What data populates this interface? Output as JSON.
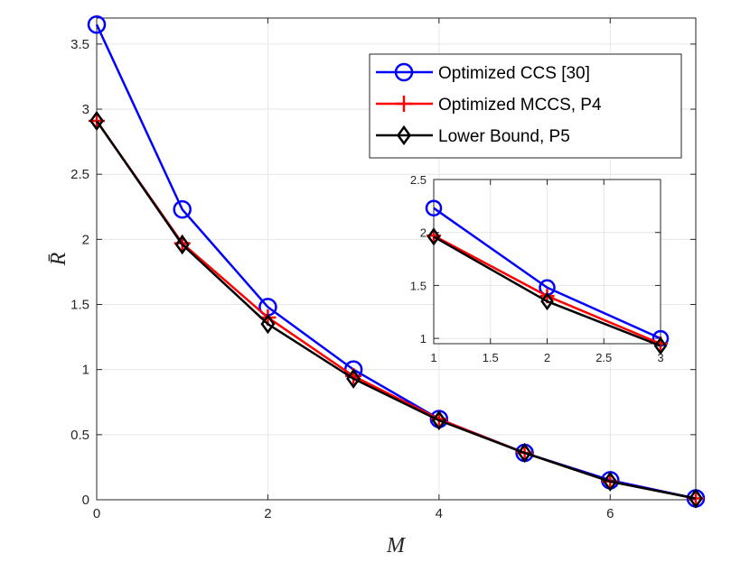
{
  "chart_data": {
    "type": "line",
    "title": "",
    "xlabel": "M",
    "ylabel": "R̄",
    "xlim": [
      0,
      7
    ],
    "ylim": [
      0,
      3.7
    ],
    "xticks": [
      0,
      2,
      4,
      6
    ],
    "yticks": [
      0,
      0.5,
      1,
      1.5,
      2,
      2.5,
      3,
      3.5
    ],
    "x": [
      0,
      1,
      2,
      3,
      4,
      5,
      6,
      7
    ],
    "grid": true,
    "legend_position": "top-right",
    "series": [
      {
        "name": "Optimized CCS [30]",
        "color": "#0000ff",
        "marker": "circle",
        "values": [
          3.65,
          2.23,
          1.48,
          1.0,
          0.62,
          0.36,
          0.15,
          0.01
        ]
      },
      {
        "name": "Optimized MCCS, P4",
        "color": "#ff0000",
        "marker": "plus",
        "values": [
          2.91,
          1.97,
          1.4,
          0.95,
          0.62,
          0.36,
          0.14,
          0.01
        ]
      },
      {
        "name": "Lower Bound, P5",
        "color": "#000000",
        "marker": "diamond",
        "values": [
          2.91,
          1.96,
          1.35,
          0.93,
          0.61,
          0.36,
          0.14,
          0.01
        ]
      }
    ],
    "inset": {
      "xlim": [
        1,
        3
      ],
      "ylim": [
        0.95,
        2.5
      ],
      "xticks": [
        1,
        1.5,
        2,
        2.5,
        3
      ],
      "yticks": [
        1,
        1.5,
        2,
        2.5
      ],
      "x": [
        1,
        2,
        3
      ]
    }
  }
}
